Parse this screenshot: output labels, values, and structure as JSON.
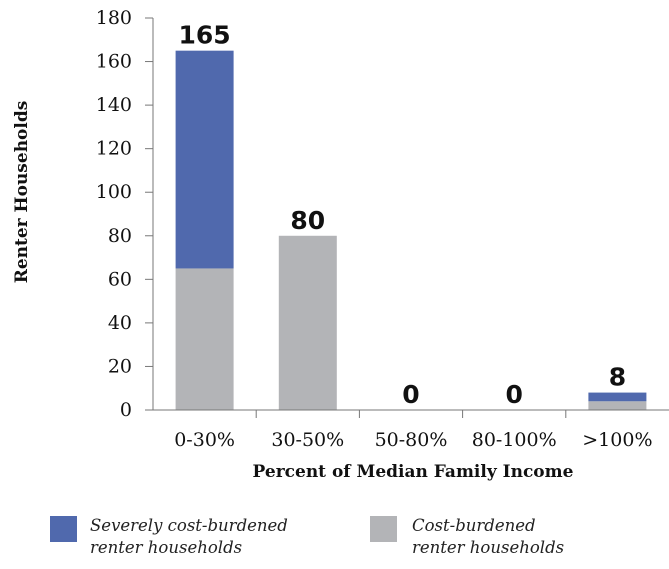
{
  "chart_data": {
    "type": "bar",
    "stacked": true,
    "categories": [
      "0-30%",
      "30-50%",
      "50-80%",
      "80-100%",
      ">100%"
    ],
    "series": [
      {
        "name": "Cost-burdened renter households",
        "values": [
          65,
          80,
          0,
          0,
          4
        ],
        "color": "#b3b4b7"
      },
      {
        "name": "Severely cost-burdened renter households",
        "values": [
          100,
          0,
          0,
          0,
          4
        ],
        "color": "#5069ad"
      }
    ],
    "totals": [
      165,
      80,
      0,
      0,
      8
    ],
    "data_labels": [
      "165",
      "80",
      "0",
      "0",
      "8"
    ],
    "xlabel": "Percent of Median Family Income",
    "ylabel": "Renter Households",
    "ylim": [
      0,
      180
    ],
    "yticks": [
      "0",
      "20",
      "40",
      "60",
      "80",
      "100",
      "120",
      "140",
      "160",
      "180"
    ],
    "grid": false,
    "legend_position": "bottom",
    "legend": [
      {
        "line1": "Severely cost-burdened",
        "line2": "renter households",
        "color": "#5069ad"
      },
      {
        "line1": "Cost-burdened",
        "line2": "renter households",
        "color": "#b3b4b7"
      }
    ]
  }
}
